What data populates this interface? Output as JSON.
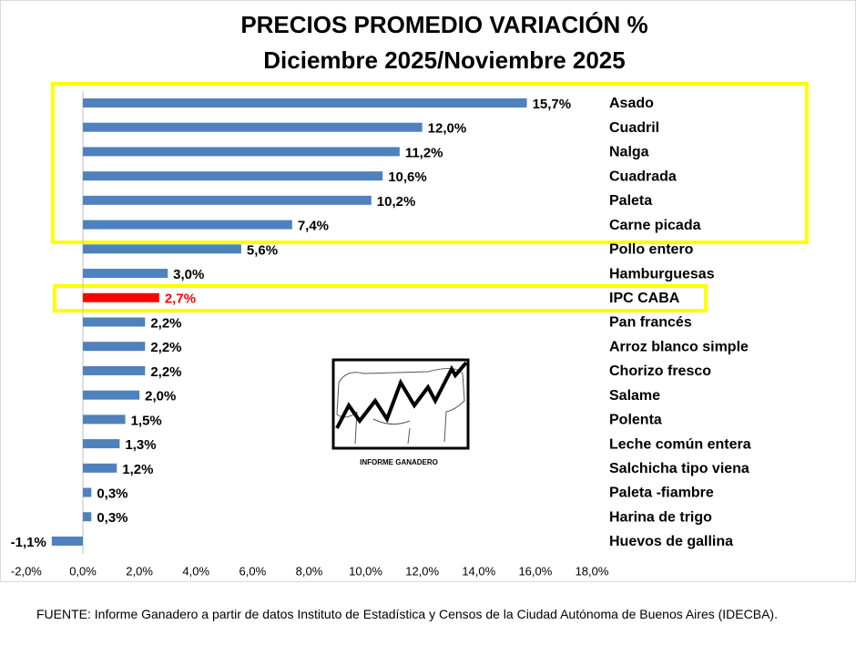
{
  "chart_data": {
    "type": "hbar",
    "title": "PRECIOS PROMEDIO  VARIACIÓN %",
    "subtitle": "Diciembre 2025/Noviembre 2025",
    "categories": [
      "Asado",
      "Cuadril",
      "Nalga",
      "Cuadrada",
      "Paleta",
      "Carne picada",
      "Pollo entero",
      "Hamburguesas",
      "IPC CABA",
      "Pan francés",
      "Arroz blanco simple",
      "Chorizo fresco",
      "Salame",
      "Polenta",
      "Leche común entera",
      "Salchicha tipo viena",
      "Paleta -fiambre",
      "Harina de trigo",
      "Huevos de gallina"
    ],
    "values": [
      15.7,
      12.0,
      11.2,
      10.6,
      10.2,
      7.4,
      5.6,
      3.0,
      2.7,
      2.2,
      2.2,
      2.2,
      2.0,
      1.5,
      1.3,
      1.2,
      0.3,
      0.3,
      -1.1
    ],
    "value_labels": [
      "15,7%",
      "12,0%",
      "11,2%",
      "10,6%",
      "10,2%",
      "7,4%",
      "5,6%",
      "3,0%",
      "2,7%",
      "2,2%",
      "2,2%",
      "2,2%",
      "2,0%",
      "1,5%",
      "1,3%",
      "1,2%",
      "0,3%",
      "0,3%",
      "-1,1%"
    ],
    "color": "#4f81bd",
    "colors": [
      "#4f81bd",
      "#4f81bd",
      "#4f81bd",
      "#4f81bd",
      "#4f81bd",
      "#4f81bd",
      "#4f81bd",
      "#4f81bd",
      "#ff0000",
      "#4f81bd",
      "#4f81bd",
      "#4f81bd",
      "#4f81bd",
      "#4f81bd",
      "#4f81bd",
      "#4f81bd",
      "#4f81bd",
      "#4f81bd",
      "#4f81bd"
    ],
    "xlim": [
      -2,
      18
    ],
    "xticks": [
      {
        "value": -2,
        "label": "-2,0%"
      },
      {
        "value": 0,
        "label": "0,0%"
      },
      {
        "value": 2,
        "label": "2,0%"
      },
      {
        "value": 4,
        "label": "4,0%"
      },
      {
        "value": 6,
        "label": "6,0%"
      },
      {
        "value": 8,
        "label": "8,0%"
      },
      {
        "value": 10,
        "label": "10,0%"
      },
      {
        "value": 12,
        "label": "12,0%"
      },
      {
        "value": 14,
        "label": "14,0%"
      },
      {
        "value": 16,
        "label": "16,0%"
      },
      {
        "value": 18,
        "label": "18,0%"
      }
    ],
    "grid": false,
    "logo_text": "INFORME GANADERO",
    "source": "FUENTE: Informe Ganadero a partir de datos Instituto de Estadística y Censos de la Ciudad Autónoma de Buenos Aires (IDECBA)."
  }
}
